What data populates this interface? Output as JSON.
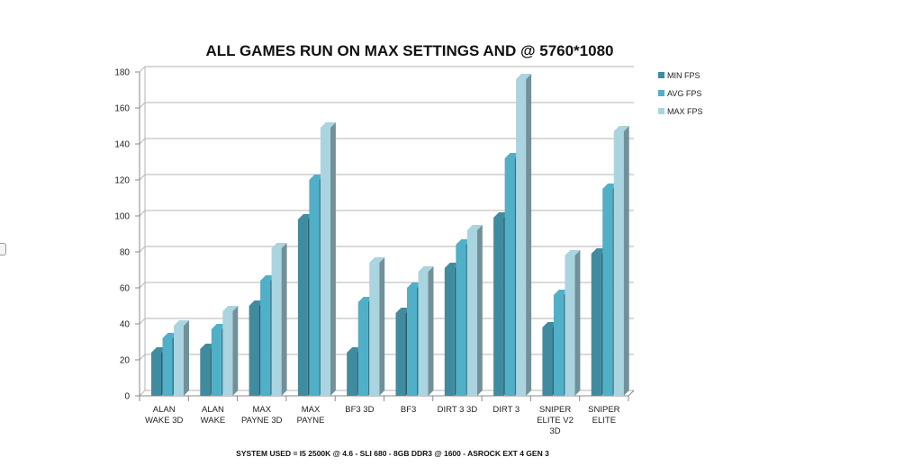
{
  "chart_data": {
    "type": "bar",
    "title": "ALL GAMES RUN ON MAX SETTINGS AND @ 5760*1080",
    "footer": "SYSTEM USED = I5 2500K @ 4.6 - SLI 680 - 8GB DDR3 @ 1600 - ASROCK EXT 4 GEN 3",
    "categories": [
      [
        "ALAN",
        "WAKE 3D"
      ],
      [
        "ALAN",
        "WAKE"
      ],
      [
        "MAX",
        "PAYNE 3D"
      ],
      [
        "MAX",
        "PAYNE"
      ],
      [
        "BF3 3D"
      ],
      [
        "BF3"
      ],
      [
        "DIRT 3 3D"
      ],
      [
        "DIRT 3"
      ],
      [
        "SNIPER",
        "ELITE V2",
        "3D"
      ],
      [
        "SNIPER",
        "ELITE"
      ]
    ],
    "series": [
      {
        "name": "MIN FPS",
        "color": "#3f8ca0",
        "values": [
          24,
          26,
          50,
          98,
          24,
          46,
          71,
          99,
          38,
          79
        ]
      },
      {
        "name": "AVG FPS",
        "color": "#4fb0c8",
        "values": [
          32,
          37,
          64,
          120,
          52,
          60,
          84,
          132,
          56,
          115
        ]
      },
      {
        "name": "MAX FPS",
        "color": "#a9d4e0",
        "values": [
          39,
          47,
          82,
          149,
          74,
          69,
          92,
          176,
          78,
          147
        ]
      }
    ],
    "ylim": [
      0,
      180
    ],
    "yticks": [
      0,
      20,
      40,
      60,
      80,
      100,
      120,
      140,
      160,
      180
    ],
    "grid": true,
    "legend_position": "right"
  }
}
